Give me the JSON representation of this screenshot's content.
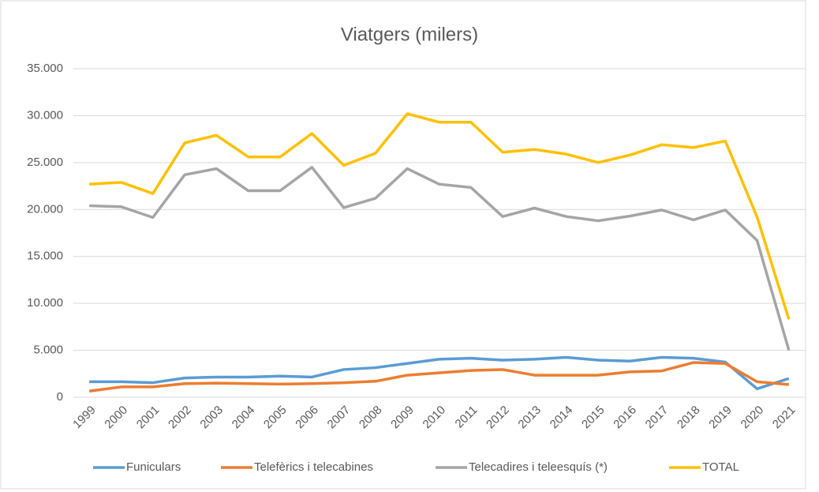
{
  "chart_data": {
    "type": "line",
    "title": "Viatgers (milers)",
    "categories": [
      "1999",
      "2000",
      "2001",
      "2002",
      "2003",
      "2004",
      "2005",
      "2006",
      "2007",
      "2008",
      "2009",
      "2010",
      "2011",
      "2012",
      "2013",
      "2014",
      "2015",
      "2016",
      "2017",
      "2018",
      "2019",
      "2020",
      "2021"
    ],
    "series": [
      {
        "name": "Funiculars",
        "color": "#5b9bd5",
        "values": [
          1650,
          1650,
          1550,
          2050,
          2150,
          2150,
          2250,
          2150,
          2950,
          3150,
          3600,
          4050,
          4150,
          3950,
          4050,
          4250,
          3950,
          3850,
          4250,
          4150,
          3750,
          900,
          2000
        ]
      },
      {
        "name": "Telefèrics i telecabines",
        "color": "#ed7d31",
        "values": [
          650,
          1100,
          1100,
          1450,
          1500,
          1450,
          1400,
          1450,
          1550,
          1700,
          2350,
          2600,
          2850,
          2950,
          2350,
          2350,
          2350,
          2700,
          2800,
          3700,
          3600,
          1650,
          1350
        ]
      },
      {
        "name": "Telecadires i teleesquís (*)",
        "color": "#a5a5a5",
        "values": [
          20400,
          20300,
          19150,
          23700,
          24350,
          22000,
          22000,
          24500,
          20200,
          21200,
          24350,
          22700,
          22350,
          19250,
          20150,
          19250,
          18800,
          19300,
          19950,
          18900,
          19950,
          16700,
          5000
        ]
      },
      {
        "name": "TOTAL",
        "color": "#ffc000",
        "values": [
          22700,
          22900,
          21700,
          27100,
          27900,
          25600,
          25600,
          28100,
          24700,
          26000,
          30200,
          29300,
          29300,
          26100,
          26400,
          25900,
          25000,
          25800,
          26900,
          26600,
          27300,
          19200,
          8300
        ]
      }
    ],
    "ylim": [
      0,
      35000
    ],
    "yticks": [
      0,
      {
        "value": 5000,
        "label": "5.000"
      },
      {
        "value": 10000,
        "label": "10.000"
      },
      {
        "value": 15000,
        "label": "15.000"
      },
      {
        "value": 20000,
        "label": "20.000"
      },
      {
        "value": 25000,
        "label": "25.000"
      },
      {
        "value": 30000,
        "label": "30.000"
      },
      {
        "value": 35000,
        "label": "35.000"
      }
    ],
    "grid": true,
    "legend": "bottom"
  }
}
